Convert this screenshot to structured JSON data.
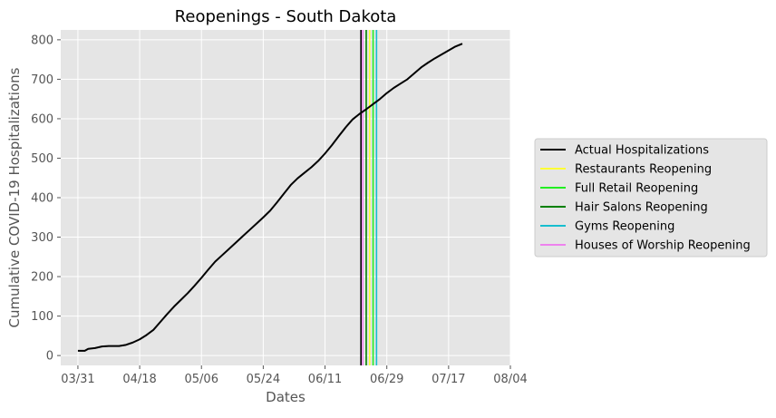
{
  "chart_data": {
    "type": "line",
    "title": "Reopenings - South Dakota",
    "xlabel": "Dates",
    "ylabel": "Cumulative COVID-19 Hospitalizations",
    "x_ticks": [
      "03/31",
      "04/18",
      "05/06",
      "05/24",
      "06/11",
      "06/29",
      "07/17",
      "08/04"
    ],
    "y_ticks": [
      0,
      100,
      200,
      300,
      400,
      500,
      600,
      700,
      800
    ],
    "xlim": [
      "2020-03-26",
      "2020-08-04"
    ],
    "ylim": [
      -25,
      825
    ],
    "grid": true,
    "legend_position": "center-right",
    "series": [
      {
        "name": "Actual Hospitalizations",
        "color": "#000000",
        "points": [
          [
            "2020-03-31",
            12
          ],
          [
            "2020-04-02",
            12
          ],
          [
            "2020-04-03",
            17
          ],
          [
            "2020-04-05",
            19
          ],
          [
            "2020-04-07",
            23
          ],
          [
            "2020-04-09",
            24
          ],
          [
            "2020-04-12",
            24
          ],
          [
            "2020-04-14",
            27
          ],
          [
            "2020-04-16",
            33
          ],
          [
            "2020-04-18",
            41
          ],
          [
            "2020-04-20",
            52
          ],
          [
            "2020-04-22",
            65
          ],
          [
            "2020-04-24",
            85
          ],
          [
            "2020-04-26",
            105
          ],
          [
            "2020-04-28",
            124
          ],
          [
            "2020-04-30",
            141
          ],
          [
            "2020-05-02",
            158
          ],
          [
            "2020-05-04",
            177
          ],
          [
            "2020-05-06",
            197
          ],
          [
            "2020-05-08",
            218
          ],
          [
            "2020-05-10",
            238
          ],
          [
            "2020-05-12",
            254
          ],
          [
            "2020-05-14",
            270
          ],
          [
            "2020-05-16",
            286
          ],
          [
            "2020-05-18",
            302
          ],
          [
            "2020-05-20",
            318
          ],
          [
            "2020-05-22",
            334
          ],
          [
            "2020-05-24",
            350
          ],
          [
            "2020-05-26",
            367
          ],
          [
            "2020-05-28",
            388
          ],
          [
            "2020-05-30",
            410
          ],
          [
            "2020-06-01",
            432
          ],
          [
            "2020-06-03",
            449
          ],
          [
            "2020-06-05",
            463
          ],
          [
            "2020-06-07",
            477
          ],
          [
            "2020-06-09",
            493
          ],
          [
            "2020-06-11",
            512
          ],
          [
            "2020-06-13",
            533
          ],
          [
            "2020-06-15",
            556
          ],
          [
            "2020-06-17",
            578
          ],
          [
            "2020-06-19",
            598
          ],
          [
            "2020-06-21",
            612
          ],
          [
            "2020-06-23",
            624
          ],
          [
            "2020-06-25",
            637
          ],
          [
            "2020-06-27",
            650
          ],
          [
            "2020-06-29",
            665
          ],
          [
            "2020-07-01",
            678
          ],
          [
            "2020-07-03",
            689
          ],
          [
            "2020-07-05",
            700
          ],
          [
            "2020-07-07",
            715
          ],
          [
            "2020-07-09",
            730
          ],
          [
            "2020-07-11",
            742
          ],
          [
            "2020-07-13",
            753
          ],
          [
            "2020-07-15",
            763
          ],
          [
            "2020-07-17",
            773
          ],
          [
            "2020-07-19",
            783
          ],
          [
            "2020-07-21",
            790
          ]
        ]
      }
    ],
    "vertical_lines": [
      {
        "name": "Restaurants Reopening",
        "date": "2020-06-24",
        "color": "#ffff33"
      },
      {
        "name": "Full Retail Reopening",
        "date": "2020-06-25",
        "color": "#22ee22"
      },
      {
        "name": "Hair Salons Reopening",
        "date": "2020-06-23",
        "color": "#008000"
      },
      {
        "name": "Gyms Reopening",
        "date": "2020-06-26",
        "color": "#17becf"
      },
      {
        "name": "Houses of Worship Reopening",
        "date": "2020-06-22",
        "color": "#ee82ee"
      }
    ],
    "extra_vertical_lines": [
      {
        "date": "2020-06-22",
        "color": "#000000"
      }
    ],
    "legend": [
      "Actual Hospitalizations",
      "Restaurants Reopening",
      "Full Retail Reopening",
      "Hair Salons Reopening",
      "Gyms Reopening",
      "Houses of Worship Reopening"
    ]
  },
  "colors": {
    "plot_background": "#e5e5e5",
    "grid": "#ffffff",
    "legend_background": "#e5e5e5",
    "legend_border": "#cccccc"
  }
}
